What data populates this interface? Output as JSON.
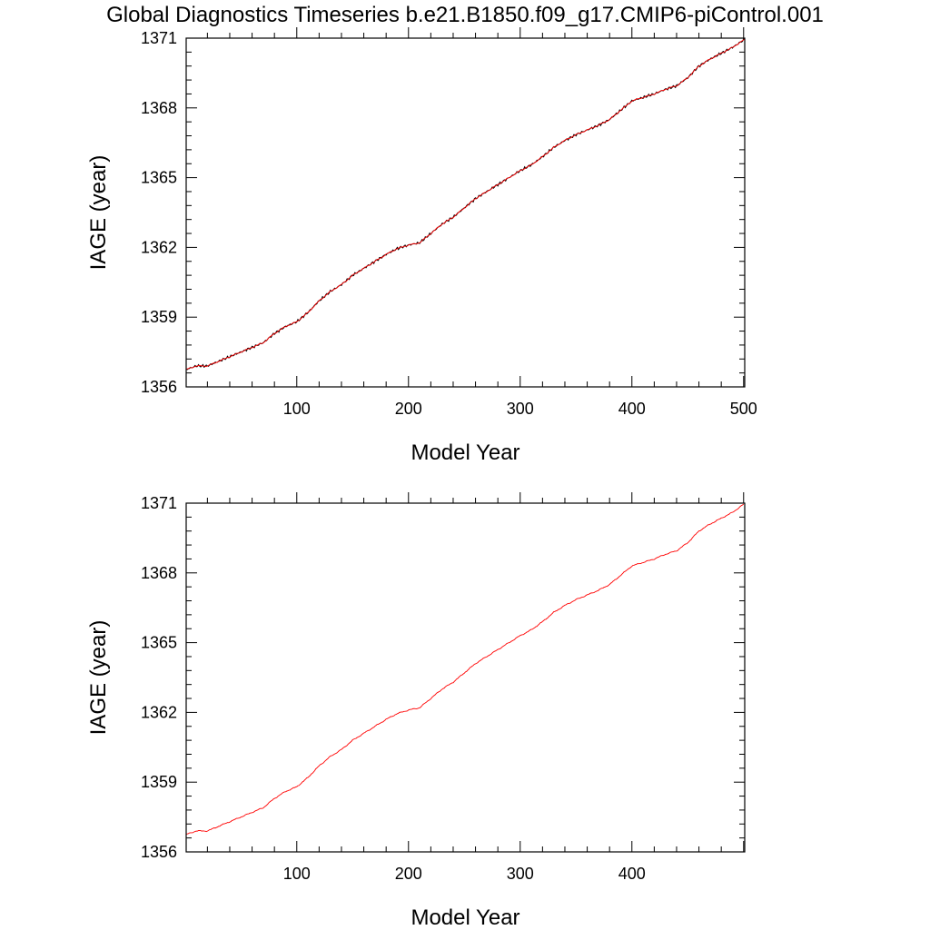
{
  "title": "Global Diagnostics Timeseries b.e21.B1850.f09_g17.CMIP6-piControl.001",
  "colors": {
    "background": "#ffffff",
    "axis": "#000000",
    "annual_line": "#000000",
    "smoothed_line": "#ff0000"
  },
  "chart_data": [
    {
      "type": "line",
      "xlabel": "Model Year",
      "ylabel": "IAGE (year)",
      "xlim": [
        1,
        501
      ],
      "ylim": [
        1356,
        1371
      ],
      "xticks": [
        100,
        200,
        300,
        400,
        500
      ],
      "xtick_labels": [
        "100",
        "200",
        "300",
        "400",
        "500"
      ],
      "yticks": [
        1356,
        1359,
        1362,
        1365,
        1368,
        1371
      ],
      "ytick_labels": [
        "1356",
        "1359",
        "1362",
        "1365",
        "1368",
        "1371"
      ],
      "grid": false,
      "series": [
        {
          "color": "#000000",
          "x": [
            1,
            10,
            20,
            30,
            40,
            50,
            60,
            70,
            80,
            90,
            100,
            110,
            120,
            130,
            140,
            150,
            160,
            170,
            180,
            190,
            200,
            210,
            220,
            230,
            240,
            250,
            260,
            270,
            280,
            290,
            300,
            310,
            320,
            330,
            340,
            350,
            360,
            370,
            380,
            390,
            400,
            410,
            420,
            430,
            440,
            450,
            460,
            470,
            480,
            490,
            501
          ],
          "y": [
            1356.75,
            1356.9,
            1356.9,
            1357.1,
            1357.3,
            1357.5,
            1357.7,
            1357.9,
            1358.3,
            1358.6,
            1358.8,
            1359.2,
            1359.7,
            1360.1,
            1360.4,
            1360.8,
            1361.1,
            1361.4,
            1361.7,
            1361.95,
            1362.1,
            1362.2,
            1362.6,
            1363.0,
            1363.3,
            1363.7,
            1364.1,
            1364.4,
            1364.7,
            1365.0,
            1365.3,
            1365.55,
            1365.9,
            1366.3,
            1366.6,
            1366.85,
            1367.05,
            1367.25,
            1367.5,
            1367.9,
            1368.3,
            1368.45,
            1368.6,
            1368.8,
            1368.95,
            1369.3,
            1369.8,
            1370.1,
            1370.35,
            1370.6,
            1370.95
          ]
        },
        {
          "color": "#ff0000",
          "x": [
            1,
            10,
            20,
            30,
            40,
            50,
            60,
            70,
            80,
            90,
            100,
            110,
            120,
            130,
            140,
            150,
            160,
            170,
            180,
            190,
            200,
            210,
            220,
            230,
            240,
            250,
            260,
            270,
            280,
            290,
            300,
            310,
            320,
            330,
            340,
            350,
            360,
            370,
            380,
            390,
            400,
            410,
            420,
            430,
            440,
            450,
            460,
            470,
            480,
            490,
            501
          ],
          "y": [
            1356.75,
            1356.9,
            1356.9,
            1357.1,
            1357.3,
            1357.5,
            1357.7,
            1357.9,
            1358.3,
            1358.6,
            1358.8,
            1359.2,
            1359.7,
            1360.1,
            1360.4,
            1360.8,
            1361.1,
            1361.4,
            1361.7,
            1361.95,
            1362.1,
            1362.2,
            1362.6,
            1363.0,
            1363.3,
            1363.7,
            1364.1,
            1364.4,
            1364.7,
            1365.0,
            1365.3,
            1365.55,
            1365.9,
            1366.3,
            1366.6,
            1366.85,
            1367.05,
            1367.25,
            1367.5,
            1367.9,
            1368.3,
            1368.45,
            1368.6,
            1368.8,
            1368.95,
            1369.3,
            1369.8,
            1370.1,
            1370.35,
            1370.6,
            1370.95
          ]
        }
      ]
    },
    {
      "type": "line",
      "xlabel": "Model Year",
      "ylabel": "IAGE (year)",
      "xlim": [
        1,
        501
      ],
      "ylim": [
        1356,
        1371
      ],
      "xticks": [
        100,
        200,
        300,
        400
      ],
      "xtick_labels": [
        "100",
        "200",
        "300",
        "400"
      ],
      "yticks": [
        1356,
        1359,
        1362,
        1365,
        1368,
        1371
      ],
      "ytick_labels": [
        "1356",
        "1359",
        "1362",
        "1365",
        "1368",
        "1371"
      ],
      "grid": false,
      "series": [
        {
          "color": "#ff0000",
          "x": [
            1,
            10,
            20,
            30,
            40,
            50,
            60,
            70,
            80,
            90,
            100,
            110,
            120,
            130,
            140,
            150,
            160,
            170,
            180,
            190,
            200,
            210,
            220,
            230,
            240,
            250,
            260,
            270,
            280,
            290,
            300,
            310,
            320,
            330,
            340,
            350,
            360,
            370,
            380,
            390,
            400,
            410,
            420,
            430,
            440,
            450,
            460,
            470,
            480,
            490,
            500
          ],
          "y": [
            1356.75,
            1356.9,
            1356.9,
            1357.1,
            1357.3,
            1357.5,
            1357.7,
            1357.9,
            1358.3,
            1358.6,
            1358.8,
            1359.2,
            1359.7,
            1360.1,
            1360.4,
            1360.8,
            1361.1,
            1361.4,
            1361.7,
            1361.95,
            1362.1,
            1362.2,
            1362.6,
            1363.0,
            1363.3,
            1363.7,
            1364.1,
            1364.4,
            1364.7,
            1365.0,
            1365.3,
            1365.55,
            1365.9,
            1366.3,
            1366.6,
            1366.85,
            1367.05,
            1367.25,
            1367.5,
            1367.9,
            1368.3,
            1368.45,
            1368.6,
            1368.8,
            1368.95,
            1369.3,
            1369.8,
            1370.1,
            1370.35,
            1370.6,
            1370.95
          ]
        }
      ]
    }
  ]
}
